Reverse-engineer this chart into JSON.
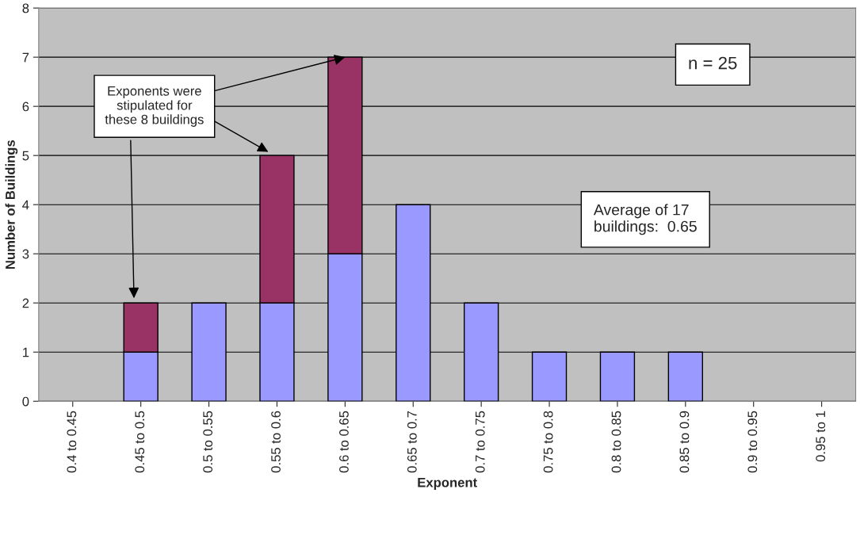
{
  "chart_data": {
    "type": "bar",
    "stacked": true,
    "xlabel": "Exponent",
    "ylabel": "Number of Buildings",
    "categories": [
      "0.4 to 0.45",
      "0.45 to 0.5",
      "0.5 to 0.55",
      "0.55 to 0.6",
      "0.6 to 0.65",
      "0.65 to 0.7",
      "0.7 to 0.75",
      "0.75 to 0.8",
      "0.8 to 0.85",
      "0.85 to 0.9",
      "0.9 to 0.95",
      "0.95 to 1"
    ],
    "series": [
      {
        "color": "#9999ff",
        "values": [
          null,
          1,
          2,
          2,
          3,
          4,
          2,
          1,
          1,
          1,
          null,
          null
        ]
      },
      {
        "color": "#993366",
        "values": [
          null,
          1,
          null,
          3,
          4,
          null,
          null,
          null,
          null,
          null,
          null,
          null
        ]
      }
    ],
    "ylim": [
      0,
      8
    ],
    "yticks": [
      0,
      1,
      2,
      3,
      4,
      5,
      6,
      7,
      8
    ],
    "grid": "y",
    "legend": false,
    "annotations": [
      {
        "text": "Exponents were\nstipulated for\nthese 8 buildings",
        "x": "0.6 to 0.65",
        "y": 7
      },
      "n = 25",
      "Average of 17\nbuildings:  0.65"
    ]
  }
}
